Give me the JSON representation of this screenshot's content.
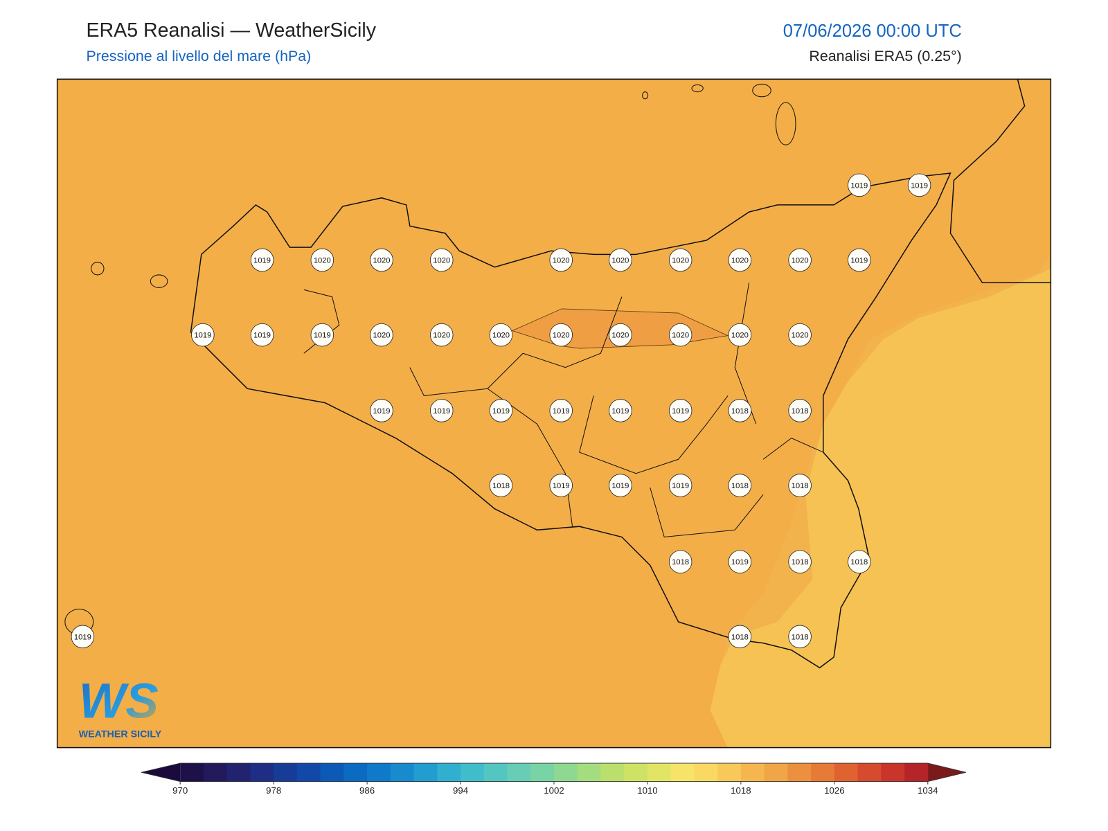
{
  "header": {
    "title": "ERA5 Reanalisi — WeatherSicily",
    "subtitle": "Pressione al livello del mare (hPa)",
    "datetime": "07/06/2026 00:00 UTC",
    "source": "Reanalisi ERA5 (0.25°)"
  },
  "map": {
    "stations": [
      1019,
      1019,
      1019,
      1020,
      1020,
      1020,
      1020,
      1020,
      1020,
      1020,
      1020,
      1019,
      1019,
      1019,
      1019,
      1020,
      1020,
      1020,
      1020,
      1020,
      1020,
      1020,
      1020,
      1019,
      1019,
      1019,
      1019,
      1019,
      1019,
      1018,
      1018,
      1018,
      1019,
      1019,
      1019,
      1018,
      1018,
      1018,
      1019,
      1018,
      1018,
      1019,
      1018,
      1018
    ]
  },
  "colorbar": {
    "ticks": [
      970,
      978,
      986,
      994,
      1002,
      1010,
      1018,
      1026,
      1034
    ],
    "colors": [
      "#1e1048",
      "#231a5e",
      "#21236f",
      "#1d2e84",
      "#173c97",
      "#1249a8",
      "#0d5ab6",
      "#0b6ac2",
      "#0e7ac9",
      "#178bcd",
      "#229dcf",
      "#30afd0",
      "#40bccb",
      "#54c6c2",
      "#67cdb5",
      "#7ad3a4",
      "#8fd891",
      "#a4dd7e",
      "#badf6c",
      "#cee266",
      "#e2e466",
      "#f5e36a",
      "#fad963",
      "#f9c85a",
      "#f5b650",
      "#f0a546",
      "#eb903e",
      "#e67a37",
      "#e06231",
      "#d64a2d",
      "#c9352a",
      "#b52428"
    ],
    "under_color": "#1a0b3c",
    "over_color": "#7a1a1a"
  },
  "logo": {
    "mark": "WS",
    "name": "WEATHER SICILY"
  }
}
